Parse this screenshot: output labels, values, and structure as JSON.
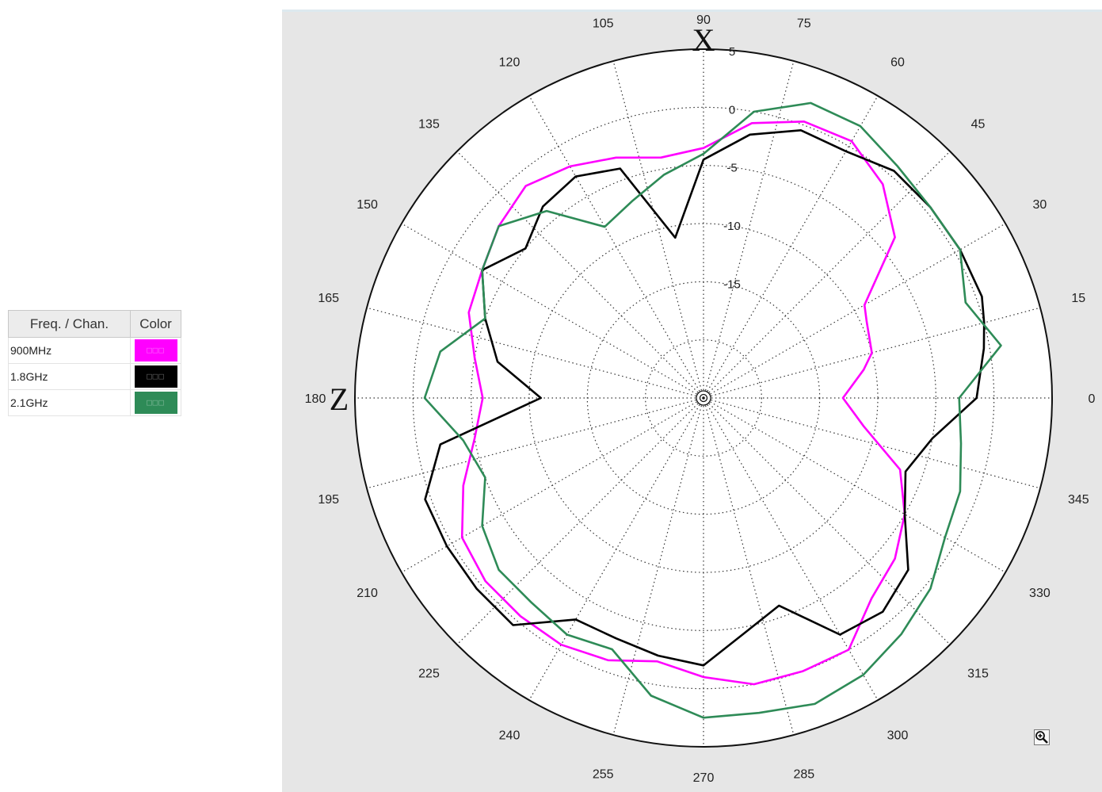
{
  "legend": {
    "header_freq": "Freq. / Chan.",
    "header_color": "Color",
    "rows": [
      {
        "label": "900MHz",
        "color": "#ff00ff",
        "swatch_text": "□□□"
      },
      {
        "label": "1.8GHz",
        "color": "#000000",
        "swatch_text": "□□□"
      },
      {
        "label": "2.1GHz",
        "color": "#2e8b57",
        "swatch_text": "□□□"
      }
    ]
  },
  "axis_marks": {
    "x": "X",
    "z": "Z"
  },
  "chart_data": {
    "type": "polar-line",
    "angle_unit": "degrees",
    "angle_ticks": [
      "0",
      "15",
      "30",
      "45",
      "60",
      "75",
      "90",
      "105",
      "120",
      "135",
      "150",
      "165",
      "180",
      "195",
      "210",
      "225",
      "240",
      "255",
      "270",
      "285",
      "300",
      "315",
      "330",
      "345"
    ],
    "radial_ticks": [
      "5",
      "0",
      "-5",
      "-10",
      "-15"
    ],
    "radial_range": [
      -25,
      5
    ],
    "grid": true,
    "icons": [
      "zoom-in-icon"
    ],
    "series": [
      {
        "name": "900MHz",
        "color": "#ff00ff",
        "points": [
          [
            0,
            -13
          ],
          [
            10,
            -11
          ],
          [
            15,
            -10
          ],
          [
            25,
            -9.5
          ],
          [
            30,
            -9
          ],
          [
            40,
            -3.5
          ],
          [
            50,
            -1
          ],
          [
            60,
            0.5
          ],
          [
            70,
            0.3
          ],
          [
            80,
            -1
          ],
          [
            90,
            -3.5
          ],
          [
            100,
            -4
          ],
          [
            110,
            -3
          ],
          [
            120,
            -2
          ],
          [
            130,
            -1.2
          ],
          [
            140,
            -2
          ],
          [
            150,
            -3
          ],
          [
            160,
            -3.5
          ],
          [
            170,
            -5
          ],
          [
            180,
            -6
          ],
          [
            190,
            -5
          ],
          [
            200,
            -3
          ],
          [
            210,
            -1
          ],
          [
            220,
            -0.5
          ],
          [
            230,
            -0.5
          ],
          [
            240,
            -0.5
          ],
          [
            250,
            -1
          ],
          [
            260,
            -2
          ],
          [
            270,
            -1
          ],
          [
            280,
            0
          ],
          [
            290,
            0
          ],
          [
            300,
            0
          ],
          [
            310,
            -2.5
          ],
          [
            320,
            -3.5
          ],
          [
            330,
            -5
          ],
          [
            340,
            -7
          ],
          [
            350,
            -11
          ],
          [
            360,
            -13
          ]
        ]
      },
      {
        "name": "1.8GHz",
        "color": "#000000",
        "points": [
          [
            0,
            -1.5
          ],
          [
            10,
            -0.5
          ],
          [
            15,
            0
          ],
          [
            20,
            0.5
          ],
          [
            30,
            0.5
          ],
          [
            40,
            0.5
          ],
          [
            50,
            0.5
          ],
          [
            60,
            -0.5
          ],
          [
            70,
            -0.5
          ],
          [
            80,
            -2
          ],
          [
            90,
            -4.5
          ],
          [
            100,
            -11
          ],
          [
            110,
            -4
          ],
          [
            120,
            -3
          ],
          [
            130,
            -3.5
          ],
          [
            140,
            -5
          ],
          [
            150,
            -3
          ],
          [
            160,
            -5
          ],
          [
            170,
            -7
          ],
          [
            180,
            -11
          ],
          [
            190,
            -2
          ],
          [
            200,
            0.5
          ],
          [
            210,
            0.5
          ],
          [
            220,
            0.5
          ],
          [
            230,
            0.5
          ],
          [
            240,
            -3
          ],
          [
            250,
            -3
          ],
          [
            260,
            -2.5
          ],
          [
            270,
            -2
          ],
          [
            280,
            -4.5
          ],
          [
            290,
            -6
          ],
          [
            300,
            -1.5
          ],
          [
            310,
            -1
          ],
          [
            320,
            -2
          ],
          [
            330,
            -5
          ],
          [
            340,
            -6.5
          ],
          [
            350,
            -5
          ],
          [
            360,
            -1.5
          ]
        ]
      },
      {
        "name": "2.1GHz",
        "color": "#2e8b57",
        "points": [
          [
            0,
            -3
          ],
          [
            10,
            1
          ],
          [
            20,
            -1
          ],
          [
            30,
            0.5
          ],
          [
            40,
            0.5
          ],
          [
            50,
            1
          ],
          [
            60,
            2
          ],
          [
            70,
            2
          ],
          [
            80,
            0
          ],
          [
            90,
            -4
          ],
          [
            100,
            -5.5
          ],
          [
            110,
            -7
          ],
          [
            120,
            -8
          ],
          [
            130,
            -4
          ],
          [
            140,
            -2
          ],
          [
            150,
            -3
          ],
          [
            160,
            -5
          ],
          [
            170,
            -2
          ],
          [
            180,
            -1
          ],
          [
            190,
            -4
          ],
          [
            200,
            -5
          ],
          [
            210,
            -3
          ],
          [
            220,
            -2
          ],
          [
            230,
            -2
          ],
          [
            240,
            -1.5
          ],
          [
            250,
            -2
          ],
          [
            260,
            1
          ],
          [
            270,
            2.5
          ],
          [
            280,
            2.5
          ],
          [
            290,
            3
          ],
          [
            300,
            2.5
          ],
          [
            310,
            1.5
          ],
          [
            320,
            0.5
          ],
          [
            330,
            -1
          ],
          [
            340,
            -1.5
          ],
          [
            350,
            -2.5
          ],
          [
            360,
            -3
          ]
        ]
      }
    ]
  }
}
